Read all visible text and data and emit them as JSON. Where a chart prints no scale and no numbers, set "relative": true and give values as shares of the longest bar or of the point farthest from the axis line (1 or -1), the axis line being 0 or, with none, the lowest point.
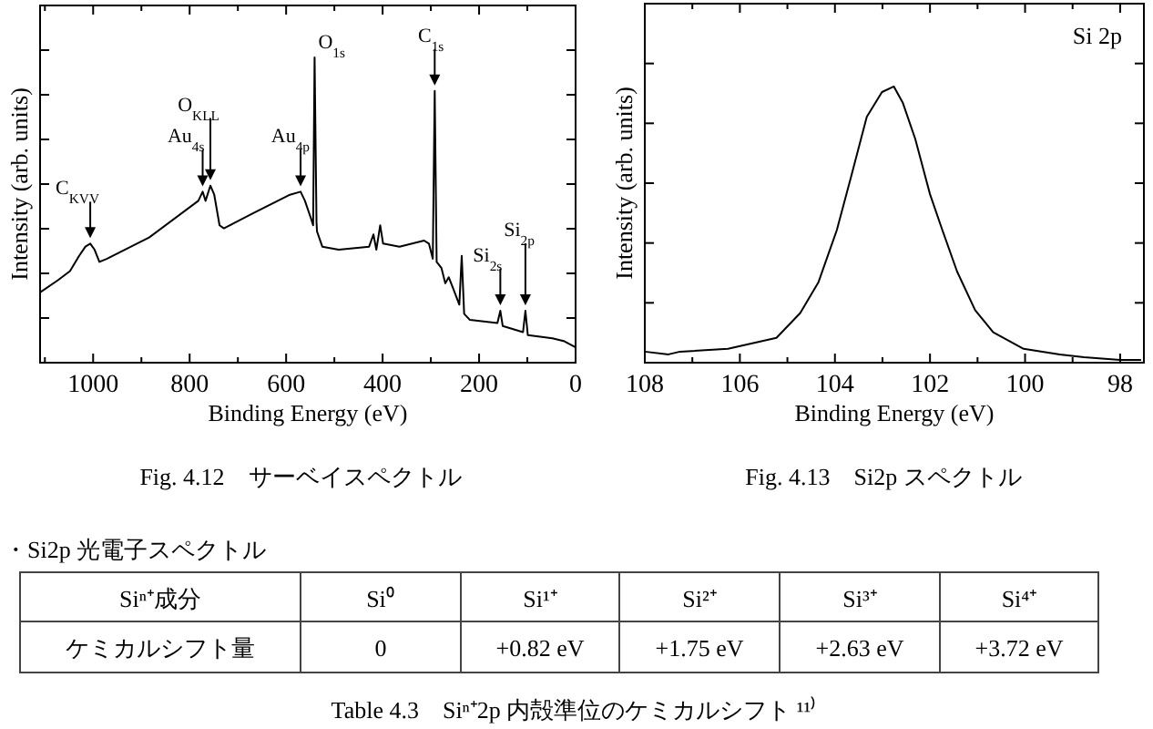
{
  "chart_data": [
    {
      "type": "line",
      "relative": true,
      "title": "Fig. 4.12　サーベイスペクトル",
      "xlabel": "Binding Energy (eV)",
      "ylabel": "Intensity (arb. units)",
      "xlim": [
        1110,
        0
      ],
      "xticks": [
        {
          "value": 1100,
          "label": null
        },
        1000,
        {
          "value": 900,
          "label": null
        },
        800,
        {
          "value": 700,
          "label": null
        },
        600,
        {
          "value": 500,
          "label": null
        },
        400,
        {
          "value": 300,
          "label": null
        },
        200,
        {
          "value": 100,
          "label": null
        },
        0
      ],
      "marker": "none",
      "line_style": "solid",
      "series": [
        {
          "color": "#000000",
          "x": [
            1110,
            1073,
            1048,
            1029,
            1016,
            1006,
            997,
            987,
            972,
            884,
            782,
            773,
            767,
            757,
            749,
            738,
            729,
            668,
            592,
            570,
            561,
            548,
            544,
            541,
            537,
            536,
            525,
            491,
            428,
            419,
            413,
            405,
            399,
            365,
            314,
            304,
            296,
            292,
            288,
            278,
            270,
            263,
            253,
            241,
            236,
            231,
            219,
            162,
            156,
            151,
            109,
            104,
            99,
            48,
            23,
            0
          ],
          "values": [
            0.23,
            0.27,
            0.3,
            0.35,
            0.38,
            0.39,
            0.37,
            0.33,
            0.34,
            0.41,
            0.53,
            0.56,
            0.53,
            0.58,
            0.55,
            0.45,
            0.44,
            0.49,
            0.55,
            0.56,
            0.53,
            0.47,
            0.45,
            1.0,
            0.46,
            0.43,
            0.38,
            0.37,
            0.38,
            0.42,
            0.37,
            0.45,
            0.39,
            0.38,
            0.4,
            0.39,
            0.34,
            0.89,
            0.33,
            0.31,
            0.26,
            0.28,
            0.24,
            0.19,
            0.35,
            0.16,
            0.14,
            0.13,
            0.17,
            0.12,
            0.1,
            0.17,
            0.09,
            0.08,
            0.07,
            0.05
          ]
        }
      ],
      "annotations": [
        {
          "text": "C$_{KVV}$",
          "x": 1006,
          "y": 0.39
        },
        {
          "text": "Au$_{4s}$",
          "x": 773,
          "y": 0.56
        },
        {
          "text": "O$_{KLL}$",
          "x": 757,
          "y": 0.58
        },
        {
          "text": "Au$_{4p}$",
          "x": 570,
          "y": 0.56
        },
        {
          "text": "O$_{1s}$",
          "x": 541,
          "y": 1.0
        },
        {
          "text": "C$_{1s}$",
          "x": 292,
          "y": 0.89
        },
        {
          "text": "Si$_{2s}$",
          "x": 156,
          "y": 0.17
        },
        {
          "text": "Si$_{2p}$",
          "x": 104,
          "y": 0.17
        }
      ]
    },
    {
      "type": "line",
      "relative": true,
      "title": "Fig. 4.13　Si2p スペクトル",
      "xlabel": "Binding Energy (eV)",
      "ylabel": "Intensity (arb. units)",
      "xlim": [
        108,
        97.5
      ],
      "xticks": [
        108,
        {
          "value": 107,
          "label": null
        },
        106,
        {
          "value": 105,
          "label": null
        },
        104,
        {
          "value": 103,
          "label": null
        },
        102,
        {
          "value": 101,
          "label": null
        },
        100,
        {
          "value": 99,
          "label": null
        },
        98
      ],
      "marker": "none",
      "line_style": "solid",
      "series": [
        {
          "color": "#000000",
          "x": [
            108,
            107.5,
            107.26,
            106.25,
            105.23,
            104.73,
            104.35,
            103.96,
            103.65,
            103.33,
            103.01,
            102.76,
            102.57,
            102.31,
            102.0,
            101.74,
            101.43,
            101.05,
            100.67,
            100.03,
            99.27,
            98.76,
            98.0,
            97.56
          ],
          "values": [
            0.04,
            0.03,
            0.04,
            0.05,
            0.09,
            0.18,
            0.29,
            0.48,
            0.68,
            0.89,
            0.98,
            1.0,
            0.94,
            0.81,
            0.61,
            0.48,
            0.33,
            0.19,
            0.11,
            0.05,
            0.03,
            0.02,
            0.01,
            0.01
          ]
        }
      ],
      "annotations": [
        "Si 2p"
      ]
    },
    {
      "type": "other",
      "title": "・Si2p 光電子スペクトル",
      "categories": [
        "Siⁿ⁺成分",
        "Si⁰",
        "Si¹⁺",
        "Si²⁺",
        "Si³⁺",
        "Si⁴⁺"
      ],
      "cell_labels": [
        [
          "ケミカルシフト量",
          "0",
          "+0.82 eV",
          "+1.75 eV",
          "+2.63 eV",
          "+3.72 eV"
        ]
      ],
      "annotations": [
        "Table 4.3　Siⁿ⁺2p 内殻準位のケミカルシフト ¹¹⁾"
      ]
    }
  ]
}
